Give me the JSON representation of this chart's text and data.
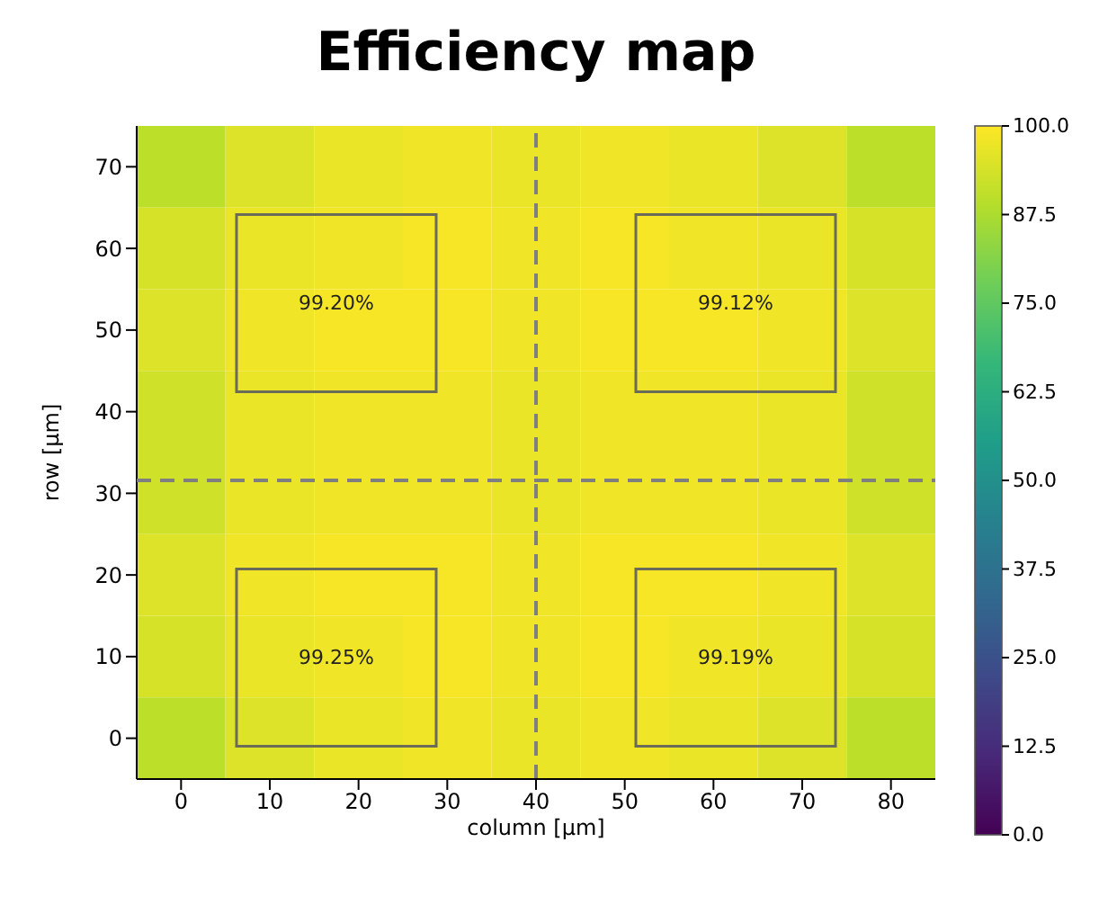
{
  "chart_data": {
    "type": "heatmap",
    "title": "Efficiency map",
    "xlabel": "column [µm]",
    "ylabel": "row [µm]",
    "categories": [
      "0",
      "10",
      "20",
      "30",
      "40",
      "50",
      "60",
      "70",
      "80"
    ],
    "y_categories": [
      "70",
      "60",
      "50",
      "40",
      "30",
      "20",
      "10",
      "0"
    ],
    "cells": [
      [
        90,
        95,
        97,
        98,
        97,
        98,
        97,
        95,
        90
      ],
      [
        94,
        97,
        98,
        99,
        98,
        99,
        98,
        97,
        94
      ],
      [
        95,
        98,
        99,
        99,
        98,
        99,
        99,
        98,
        95
      ],
      [
        93,
        97,
        98,
        98,
        97,
        98,
        98,
        97,
        93
      ],
      [
        93,
        97,
        98,
        98,
        97,
        98,
        98,
        97,
        93
      ],
      [
        95,
        98,
        99,
        99,
        98,
        99,
        99,
        98,
        95
      ],
      [
        94,
        97,
        98,
        99,
        98,
        99,
        98,
        97,
        94
      ],
      [
        90,
        95,
        97,
        98,
        97,
        98,
        97,
        95,
        90
      ]
    ],
    "clim": [
      0,
      100
    ],
    "cticks": [
      {
        "value": 0,
        "label": "0.0"
      },
      {
        "value": 12.5,
        "label": "12.5"
      },
      {
        "value": 25,
        "label": "25.0"
      },
      {
        "value": 37.5,
        "label": "37.5"
      },
      {
        "value": 50,
        "label": "50.0"
      },
      {
        "value": 62.5,
        "label": "62.5"
      },
      {
        "value": 75,
        "label": "75.0"
      },
      {
        "value": 87.5,
        "label": "87.5"
      },
      {
        "value": 100,
        "label": "100.0"
      }
    ],
    "ref_lines": [
      {
        "axis": "x",
        "value": "40",
        "color": "#7f7f7f",
        "line_style": "dashed"
      }
    ],
    "annotations": [
      "99.20%",
      "99.12%",
      "99.25%",
      "99.19%"
    ]
  }
}
